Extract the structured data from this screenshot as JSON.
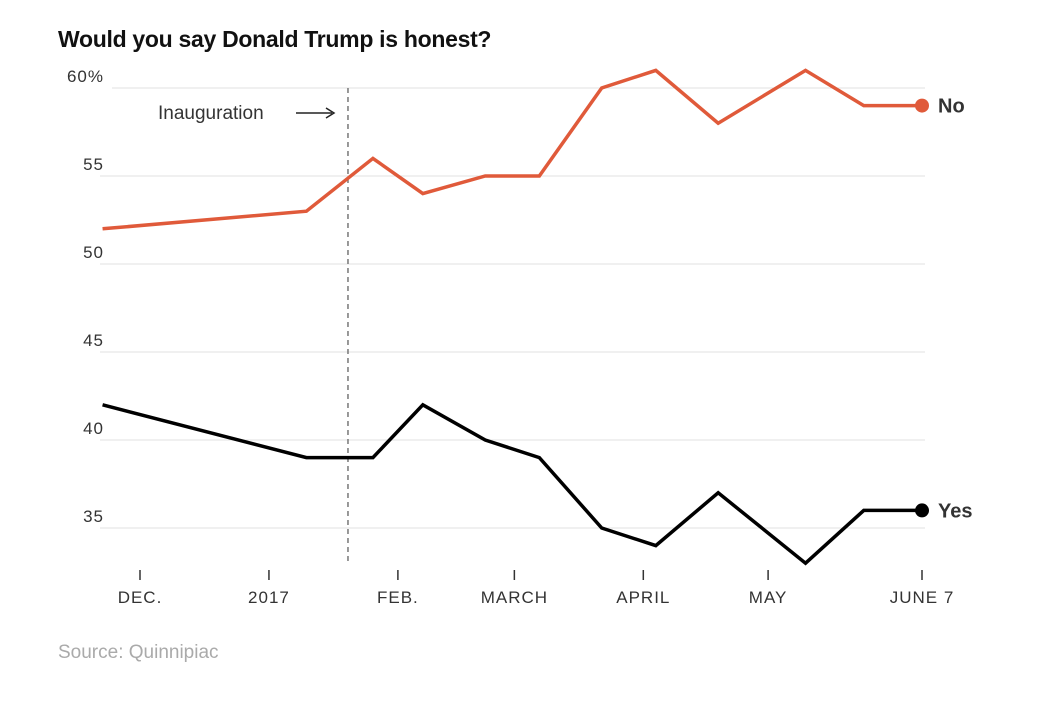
{
  "chart_data": {
    "type": "line",
    "title": "Would you say Donald Trump is honest?",
    "source": "Source: Quinnipiac",
    "ylim": [
      33,
      60
    ],
    "yticks": [
      60,
      55,
      50,
      45,
      40,
      35
    ],
    "ytick_labels": [
      "60%",
      "55",
      "50",
      "45",
      "40",
      "35"
    ],
    "xticks": [
      {
        "date": "2016-12-01",
        "label": "DEC."
      },
      {
        "date": "2017-01-01",
        "label": "2017"
      },
      {
        "date": "2017-02-01",
        "label": "FEB."
      },
      {
        "date": "2017-03-01",
        "label": "MARCH"
      },
      {
        "date": "2017-04-01",
        "label": "APRIL"
      },
      {
        "date": "2017-05-01",
        "label": "MAY"
      },
      {
        "date": "2017-06-07",
        "label": "JUNE 7"
      }
    ],
    "x": [
      "2016-11-22",
      "2017-01-10",
      "2017-01-26",
      "2017-02-07",
      "2017-02-22",
      "2017-03-07",
      "2017-03-22",
      "2017-04-04",
      "2017-04-19",
      "2017-05-10",
      "2017-05-24",
      "2017-06-07"
    ],
    "series": [
      {
        "name": "No",
        "color": "#e05a3a",
        "values": [
          52,
          53,
          56,
          54,
          55,
          55,
          60,
          61,
          58,
          61,
          59,
          59
        ]
      },
      {
        "name": "Yes",
        "color": "#000000",
        "values": [
          42,
          39,
          39,
          42,
          40,
          39,
          35,
          34,
          37,
          33,
          36,
          36
        ]
      }
    ],
    "annotation": {
      "date": "2017-01-20",
      "label": "Inauguration"
    },
    "grid": true
  }
}
